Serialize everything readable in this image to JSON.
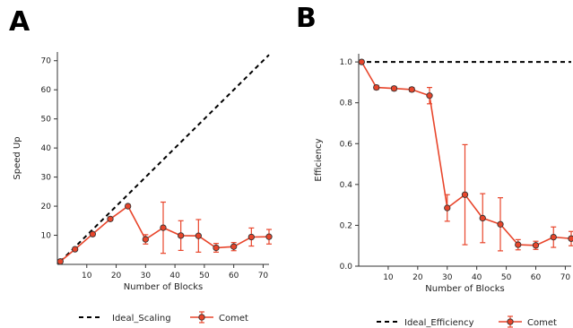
{
  "chart_data": [
    {
      "type": "line",
      "panel_label": "A",
      "xlabel": "Number of Blocks",
      "ylabel": "Speed Up",
      "xlim": [
        0,
        72
      ],
      "ylim": [
        0,
        73
      ],
      "xticks": [
        10,
        20,
        30,
        40,
        50,
        60,
        70
      ],
      "yticks": [
        10,
        20,
        30,
        40,
        50,
        60,
        70
      ],
      "grid": false,
      "legend_position": "bottom",
      "series": [
        {
          "name": "Ideal_Scaling",
          "style": "dashed",
          "color": "#000000",
          "x": [
            1,
            72
          ],
          "y": [
            1,
            72
          ]
        },
        {
          "name": "Comet",
          "style": "solid-markers-errorbars",
          "color": "#e8452b",
          "x": [
            1,
            6,
            12,
            18,
            24,
            30,
            36,
            42,
            48,
            54,
            60,
            66,
            72
          ],
          "y": [
            1,
            5.2,
            10.4,
            15.6,
            20,
            8.6,
            12.6,
            9.9,
            9.8,
            5.7,
            6.1,
            9.4,
            9.5
          ],
          "yerr": [
            0,
            0.4,
            0.6,
            0.6,
            0.6,
            1.6,
            8.8,
            5.1,
            5.6,
            1.5,
            1.4,
            3.1,
            2.5
          ]
        }
      ]
    },
    {
      "type": "line",
      "panel_label": "B",
      "xlabel": "Number of Blocks",
      "ylabel": "Efficiency",
      "xlim": [
        0,
        72
      ],
      "ylim": [
        0,
        1.04
      ],
      "xticks": [
        10,
        20,
        30,
        40,
        50,
        60,
        70
      ],
      "yticks": [
        0.0,
        0.2,
        0.4,
        0.6,
        0.8,
        1.0
      ],
      "ytick_labels": [
        "0.0",
        "0.2",
        "0.4",
        "0.6",
        "0.8",
        "1.0"
      ],
      "grid": false,
      "legend_position": "bottom",
      "series": [
        {
          "name": "Ideal_Efficiency",
          "style": "dashed",
          "color": "#000000",
          "x": [
            0,
            72
          ],
          "y": [
            1.0,
            1.0
          ]
        },
        {
          "name": "Comet",
          "style": "solid-markers-errorbars",
          "color": "#e8452b",
          "x": [
            1,
            6,
            12,
            18,
            24,
            30,
            36,
            42,
            48,
            54,
            60,
            66,
            72
          ],
          "y": [
            1.0,
            0.875,
            0.87,
            0.865,
            0.835,
            0.285,
            0.35,
            0.235,
            0.205,
            0.105,
            0.102,
            0.142,
            0.135
          ],
          "yerr": [
            0,
            0.01,
            0.01,
            0.01,
            0.04,
            0.065,
            0.245,
            0.12,
            0.13,
            0.025,
            0.02,
            0.05,
            0.035
          ]
        }
      ]
    }
  ]
}
